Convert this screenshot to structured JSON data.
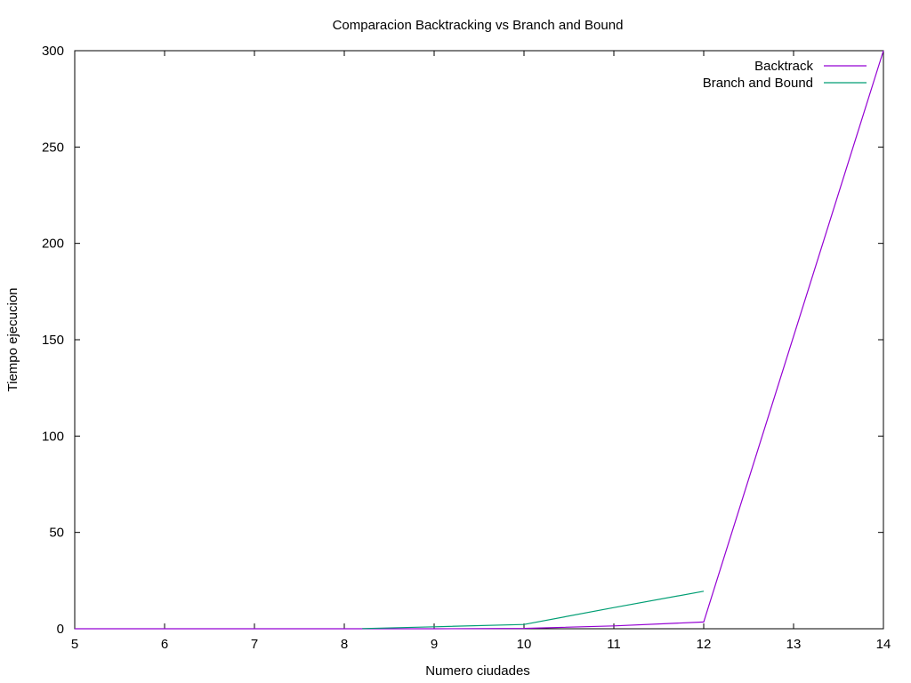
{
  "chart_data": {
    "type": "line",
    "title": "Comparacion Backtracking vs Branch and Bound",
    "xlabel": "Numero ciudades",
    "ylabel": "Tiempo ejecucion",
    "xlim": [
      5,
      14
    ],
    "ylim": [
      0,
      300
    ],
    "xticks": [
      5,
      6,
      7,
      8,
      9,
      10,
      11,
      12,
      13,
      14
    ],
    "yticks": [
      0,
      50,
      100,
      150,
      200,
      250,
      300
    ],
    "grid": false,
    "legend_position": "top-right",
    "series": [
      {
        "name": "Backtrack",
        "color": "#9400d3",
        "x": [
          5,
          6,
          7,
          8,
          9,
          10,
          11,
          12,
          14
        ],
        "y": [
          0,
          0,
          0,
          0,
          0,
          0.2,
          1.5,
          3.5,
          300
        ]
      },
      {
        "name": "Branch and Bound",
        "color": "#009e73",
        "x": [
          8.2,
          9,
          10,
          11,
          12
        ],
        "y": [
          0.1,
          1,
          2.2,
          11,
          19.5
        ]
      }
    ]
  }
}
